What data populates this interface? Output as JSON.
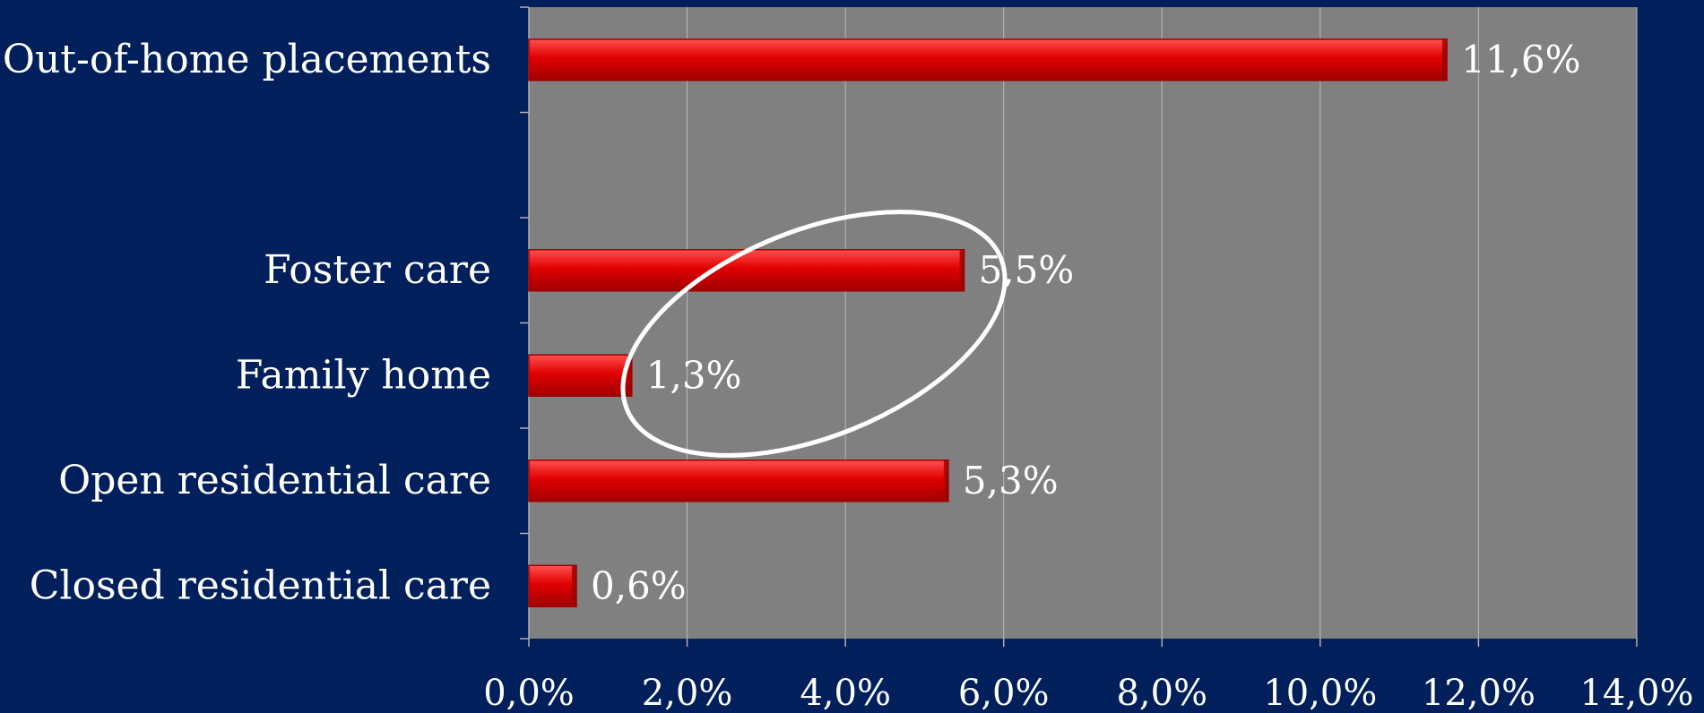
{
  "chart_data": {
    "type": "bar",
    "orientation": "horizontal",
    "categories": [
      "Out-of-home placements",
      "",
      "Foster care",
      "Family home",
      "Open residential care",
      "Closed residential care"
    ],
    "values": [
      11.6,
      null,
      5.5,
      1.3,
      5.3,
      0.6
    ],
    "value_labels": [
      "11,6%",
      "",
      "5,5%",
      "1,3%",
      "5,3%",
      "0,6%"
    ],
    "xlim": [
      0,
      14
    ],
    "xticks": [
      0,
      2,
      4,
      6,
      8,
      10,
      12,
      14
    ],
    "xtick_labels": [
      "0,0%",
      "2,0%",
      "4,0%",
      "6,0%",
      "8,0%",
      "10,0%",
      "12,0%",
      "14,0%"
    ],
    "grid": "vertical",
    "highlight": {
      "shape": "ellipse",
      "categories": [
        "Foster care",
        "Family home"
      ]
    },
    "colors": {
      "background": "#001f5b",
      "plot_area": "#808080",
      "bar": "#e00000",
      "bar_dark": "#a00000",
      "bar_light": "#ff5050",
      "gridline": "#b0b0b0",
      "text": "#ffffff",
      "highlight": "#ffffff"
    }
  }
}
